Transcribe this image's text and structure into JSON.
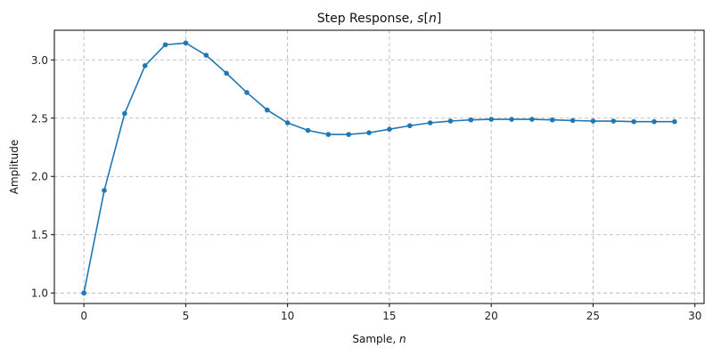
{
  "chart_data": {
    "type": "line",
    "title": "Step Response, s[n]",
    "title_parts": {
      "prefix": "Step Response, ",
      "sym": "s",
      "open": "[",
      "var": "n",
      "close": "]"
    },
    "xlabel": "Sample, n",
    "xlabel_parts": {
      "prefix": "Sample, ",
      "var": "n"
    },
    "ylabel": "Amplitude",
    "xlim": [
      -1.45,
      30.45
    ],
    "ylim": [
      0.91,
      3.254
    ],
    "xticks": [
      0,
      5,
      10,
      15,
      20,
      25,
      30
    ],
    "yticks": [
      1.0,
      1.5,
      2.0,
      2.5,
      3.0
    ],
    "ytick_labels": [
      "1.0",
      "1.5",
      "2.0",
      "2.5",
      "3.0"
    ],
    "grid": true,
    "legend": null,
    "x": [
      0,
      1,
      2,
      3,
      4,
      5,
      6,
      7,
      8,
      9,
      10,
      11,
      12,
      13,
      14,
      15,
      16,
      17,
      18,
      19,
      20,
      21,
      22,
      23,
      24,
      25,
      26,
      27,
      28,
      29
    ],
    "series": [
      {
        "name": "s[n]",
        "color": "#1f77b4",
        "marker": "circle",
        "values": [
          1.0,
          1.88,
          2.54,
          2.95,
          3.13,
          3.145,
          3.04,
          2.885,
          2.72,
          2.57,
          2.46,
          2.395,
          2.36,
          2.36,
          2.375,
          2.405,
          2.435,
          2.46,
          2.475,
          2.485,
          2.49,
          2.49,
          2.49,
          2.485,
          2.48,
          2.475,
          2.475,
          2.47,
          2.47,
          2.47
        ]
      }
    ]
  }
}
